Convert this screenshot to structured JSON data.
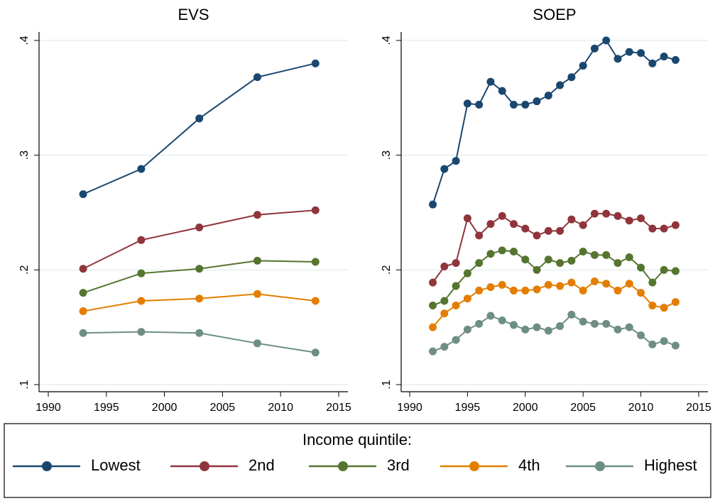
{
  "chart_data": [
    {
      "type": "line",
      "title": "EVS",
      "legend_title": "Income quintile:",
      "x": [
        1993,
        1998,
        2003,
        2008,
        2013
      ],
      "series": [
        {
          "name": "Lowest",
          "color": "#1a476f",
          "values": [
            0.266,
            0.288,
            0.332,
            0.368,
            0.38
          ]
        },
        {
          "name": "2nd",
          "color": "#90353b",
          "values": [
            0.201,
            0.226,
            0.237,
            0.248,
            0.252
          ]
        },
        {
          "name": "3rd",
          "color": "#55752f",
          "values": [
            0.18,
            0.197,
            0.201,
            0.208,
            0.207
          ]
        },
        {
          "name": "4th",
          "color": "#e37e00",
          "values": [
            0.164,
            0.173,
            0.175,
            0.179,
            0.173
          ]
        },
        {
          "name": "Highest",
          "color": "#6e8e84",
          "values": [
            0.145,
            0.146,
            0.145,
            0.136,
            0.128
          ]
        }
      ],
      "xlim": [
        1990,
        2015
      ],
      "xticks": [
        1990,
        1995,
        2000,
        2005,
        2010,
        2015
      ],
      "ylim": [
        0.1,
        0.4
      ],
      "yticks": [
        {
          "value": 0.1,
          "label": ".1"
        },
        {
          "value": 0.2,
          "label": ".2"
        },
        {
          "value": 0.3,
          "label": ".3"
        },
        {
          "value": 0.4,
          "label": ".4"
        }
      ],
      "grid": true
    },
    {
      "type": "line",
      "title": "SOEP",
      "x": [
        1992,
        1993,
        1994,
        1995,
        1996,
        1997,
        1998,
        1999,
        2000,
        2001,
        2002,
        2003,
        2004,
        2005,
        2006,
        2007,
        2008,
        2009,
        2010,
        2011,
        2012,
        2013
      ],
      "series": [
        {
          "name": "Lowest",
          "color": "#1a476f",
          "values": [
            0.257,
            0.288,
            0.295,
            0.345,
            0.344,
            0.364,
            0.356,
            0.344,
            0.344,
            0.347,
            0.352,
            0.361,
            0.368,
            0.378,
            0.393,
            0.4,
            0.384,
            0.39,
            0.389,
            0.38,
            0.386,
            0.383
          ]
        },
        {
          "name": "2nd",
          "color": "#90353b",
          "values": [
            0.189,
            0.203,
            0.206,
            0.245,
            0.23,
            0.24,
            0.247,
            0.24,
            0.236,
            0.23,
            0.234,
            0.234,
            0.244,
            0.239,
            0.249,
            0.249,
            0.247,
            0.243,
            0.245,
            0.236,
            0.236,
            0.239
          ]
        },
        {
          "name": "3rd",
          "color": "#55752f",
          "values": [
            0.169,
            0.173,
            0.186,
            0.197,
            0.206,
            0.214,
            0.217,
            0.216,
            0.209,
            0.2,
            0.209,
            0.206,
            0.208,
            0.216,
            0.213,
            0.213,
            0.206,
            0.211,
            0.202,
            0.189,
            0.2,
            0.199
          ]
        },
        {
          "name": "4th",
          "color": "#e37e00",
          "values": [
            0.15,
            0.162,
            0.169,
            0.175,
            0.182,
            0.185,
            0.187,
            0.182,
            0.182,
            0.183,
            0.187,
            0.186,
            0.189,
            0.182,
            0.19,
            0.188,
            0.182,
            0.188,
            0.18,
            0.169,
            0.167,
            0.172
          ]
        },
        {
          "name": "Highest",
          "color": "#6e8e84",
          "values": [
            0.129,
            0.133,
            0.139,
            0.148,
            0.153,
            0.16,
            0.156,
            0.152,
            0.148,
            0.15,
            0.147,
            0.151,
            0.161,
            0.155,
            0.153,
            0.153,
            0.148,
            0.15,
            0.143,
            0.135,
            0.138,
            0.134
          ]
        }
      ],
      "xlim": [
        1990,
        2015
      ],
      "xticks": [
        1990,
        1995,
        2000,
        2005,
        2010,
        2015
      ],
      "ylim": [
        0.1,
        0.4
      ],
      "yticks": [
        {
          "value": 0.1,
          "label": ".1"
        },
        {
          "value": 0.2,
          "label": ".2"
        },
        {
          "value": 0.3,
          "label": ".3"
        },
        {
          "value": 0.4,
          "label": ".4"
        }
      ],
      "grid": true
    }
  ]
}
